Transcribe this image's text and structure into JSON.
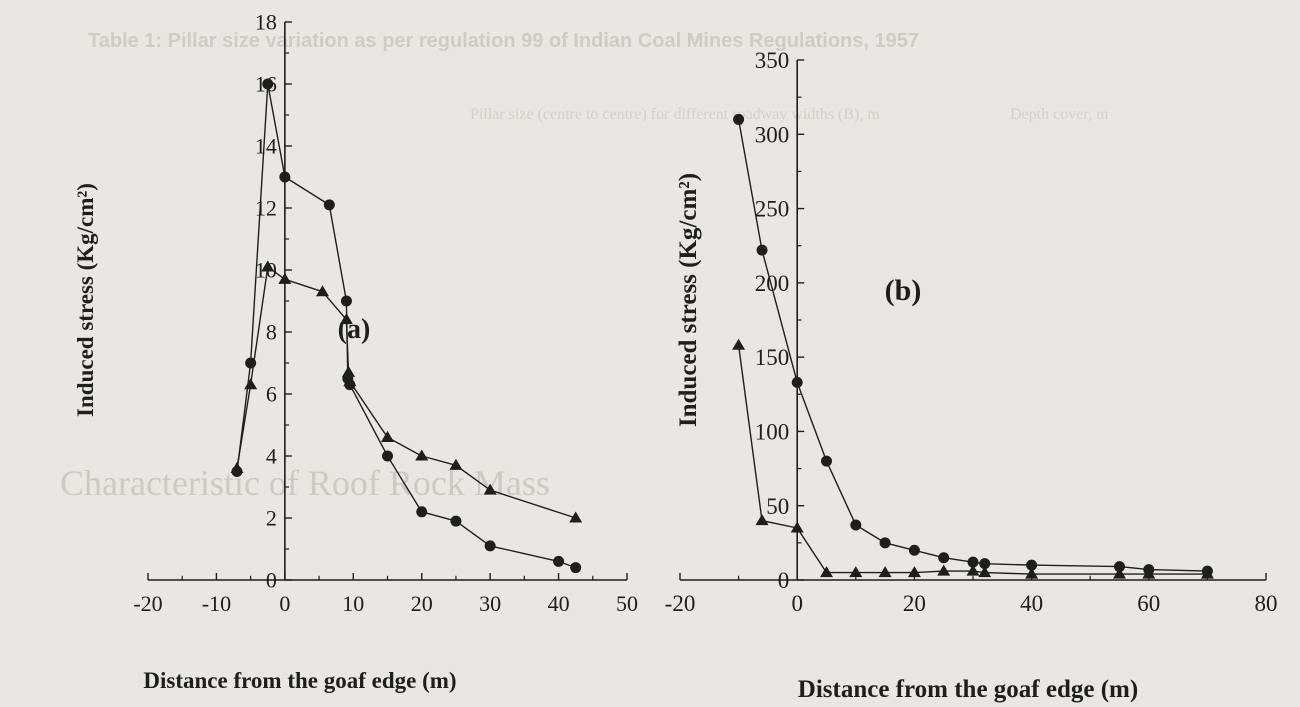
{
  "background_text": {
    "table_caption": "Table 1: Pillar size variation as per regulation 99 of Indian Coal Mines Regulations, 1957",
    "heading": "Characteristic of Roof Rock Mass",
    "table_col_depth": "Depth cover, m",
    "table_col_pillar": "Pillar size (centre to centre) for different roadway widths (B), m"
  },
  "chart_data": [
    {
      "type": "line",
      "panel_label": "(a)",
      "xlabel": "Distance from the goaf edge (m)",
      "ylabel": "Induced stress (Kg/cm²)",
      "xlim": [
        -20,
        50
      ],
      "ylim": [
        0,
        18
      ],
      "xticks": [
        -20,
        -10,
        0,
        10,
        20,
        30,
        40,
        50
      ],
      "yticks": [
        0,
        2,
        4,
        6,
        8,
        10,
        12,
        14,
        16,
        18
      ],
      "grid": false,
      "series": [
        {
          "marker": "circle",
          "x": [
            -7,
            -5,
            -2.5,
            0,
            6.5,
            9,
            9.2,
            9.5,
            15,
            20,
            25,
            30,
            40,
            42.5
          ],
          "y": [
            3.5,
            7.0,
            16.0,
            13.0,
            12.1,
            9.0,
            6.5,
            6.3,
            4.0,
            2.2,
            1.9,
            1.1,
            0.6,
            0.4
          ]
        },
        {
          "marker": "triangle",
          "x": [
            -7,
            -5,
            -2.5,
            0,
            5.5,
            9,
            9.3,
            9.5,
            15,
            20,
            25,
            30,
            42.5
          ],
          "y": [
            3.6,
            6.3,
            10.1,
            9.7,
            9.3,
            8.4,
            6.7,
            6.4,
            4.6,
            4.0,
            3.7,
            2.9,
            2.0
          ]
        }
      ]
    },
    {
      "type": "line",
      "panel_label": "(b)",
      "xlabel": "Distance from the goaf edge (m)",
      "ylabel": "Induced stress (Kg/cm²)",
      "xlim": [
        -20,
        80
      ],
      "ylim": [
        0,
        350
      ],
      "xticks": [
        -20,
        0,
        20,
        40,
        60,
        80
      ],
      "yticks": [
        0,
        50,
        100,
        150,
        200,
        250,
        300,
        350
      ],
      "grid": false,
      "series": [
        {
          "marker": "circle",
          "x": [
            -10,
            -6,
            0,
            5,
            10,
            15,
            20,
            25,
            30,
            32,
            40,
            55,
            60,
            70
          ],
          "y": [
            310,
            222,
            133,
            80,
            37,
            25,
            20,
            15,
            12,
            11,
            10,
            9,
            7,
            6
          ]
        },
        {
          "marker": "triangle",
          "x": [
            -10,
            -6,
            0,
            5,
            10,
            15,
            20,
            25,
            30,
            32,
            40,
            55,
            60,
            70
          ],
          "y": [
            158,
            40,
            35,
            5,
            5,
            5,
            5,
            6,
            6,
            5,
            4,
            4,
            4,
            4
          ]
        }
      ]
    }
  ]
}
